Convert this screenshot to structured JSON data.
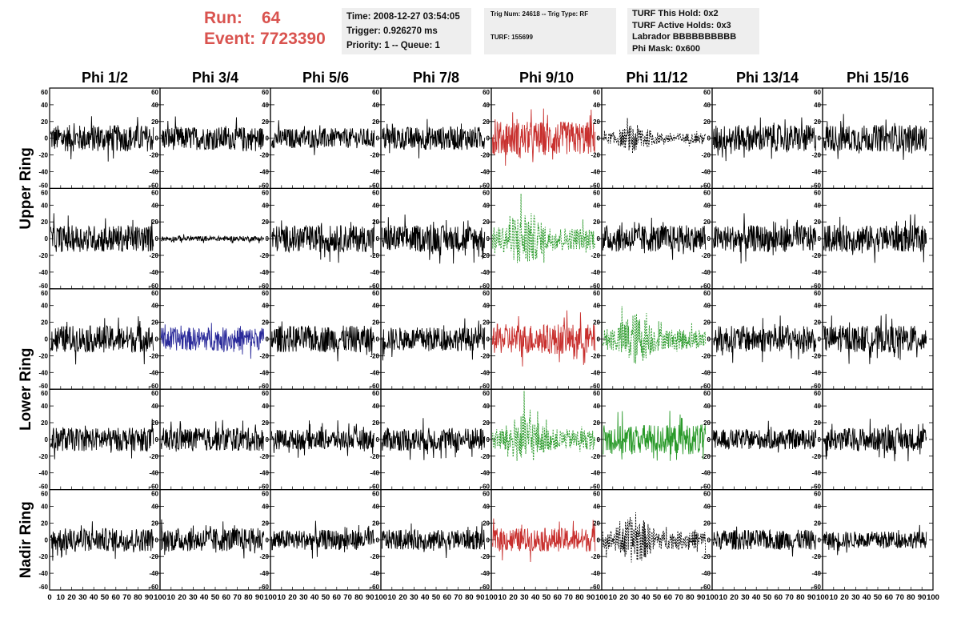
{
  "header": {
    "run_label": "Run:",
    "run_value": "64",
    "event_label": "Event:",
    "event_value": "7723390",
    "info1": [
      "Time: 2008-12-27 03:54:05",
      "Trigger: 0.926270 ms",
      "Priority: 1 -- Queue: 1"
    ],
    "info2_trig": "Trig Num: 24618 -- Trig Type: RF",
    "info2_turf": "TURF: 155699",
    "info3": [
      "TURF This Hold: 0x2",
      "TURF Active Holds: 0x3",
      "Labrador BBBBBBBBBB",
      "Phi Mask: 0x600"
    ]
  },
  "colors": {
    "normal": "#000000",
    "red": "#c8302e",
    "green": "#2a9a2a",
    "blue": "#2a2a9a"
  },
  "chart_data": {
    "type": "line",
    "columns": [
      "Phi 1/2",
      "Phi 3/4",
      "Phi 5/6",
      "Phi 7/8",
      "Phi 9/10",
      "Phi 11/12",
      "Phi 13/14",
      "Phi 15/16"
    ],
    "rings": [
      "Upper Ring",
      "Lower Ring",
      "Nadir Ring"
    ],
    "xlim": [
      0,
      100
    ],
    "ylim": [
      -60,
      60
    ],
    "y_ticks": [
      -60,
      -40,
      -20,
      0,
      20,
      40,
      60
    ],
    "x_ticks": [
      0,
      10,
      20,
      30,
      40,
      50,
      60,
      70,
      80,
      90,
      100
    ],
    "x_tick_labels": [
      "0",
      "10",
      "20",
      "30",
      "40",
      "50",
      "60",
      "70",
      "80",
      "90",
      "100"
    ],
    "panels": [
      [
        "n",
        "n",
        "n",
        "n",
        "r",
        "k",
        "n",
        "n"
      ],
      [
        "n",
        "f",
        "n",
        "n",
        "g",
        "n",
        "n",
        "n"
      ],
      [
        "n",
        "b",
        "n",
        "n",
        "r",
        "g",
        "n",
        "n"
      ],
      [
        "n",
        "n",
        "n",
        "n",
        "g",
        "G",
        "n",
        "n"
      ],
      [
        "n",
        "n",
        "n",
        "n",
        "r",
        "k",
        "n",
        "n"
      ]
    ],
    "panel_amplitudes": [
      [
        16,
        14,
        12,
        14,
        20,
        10,
        16,
        16
      ],
      [
        16,
        3,
        16,
        16,
        22,
        16,
        16,
        16
      ],
      [
        16,
        14,
        16,
        14,
        18,
        20,
        16,
        16
      ],
      [
        14,
        14,
        12,
        14,
        20,
        18,
        12,
        14
      ],
      [
        14,
        14,
        12,
        12,
        14,
        18,
        12,
        10
      ]
    ],
    "panel_line_styles": [
      [
        "solid",
        "solid",
        "solid",
        "solid",
        "solid",
        "dashed",
        "solid",
        "solid"
      ],
      [
        "solid",
        "solid",
        "solid",
        "solid",
        "dashed",
        "solid",
        "solid",
        "solid"
      ],
      [
        "solid",
        "solid",
        "solid",
        "solid",
        "solid",
        "dashed",
        "solid",
        "solid"
      ],
      [
        "solid",
        "solid",
        "solid",
        "solid",
        "dashed",
        "solid",
        "solid",
        "solid"
      ],
      [
        "solid",
        "solid",
        "solid",
        "solid",
        "solid",
        "dashed",
        "solid",
        "solid"
      ]
    ]
  }
}
